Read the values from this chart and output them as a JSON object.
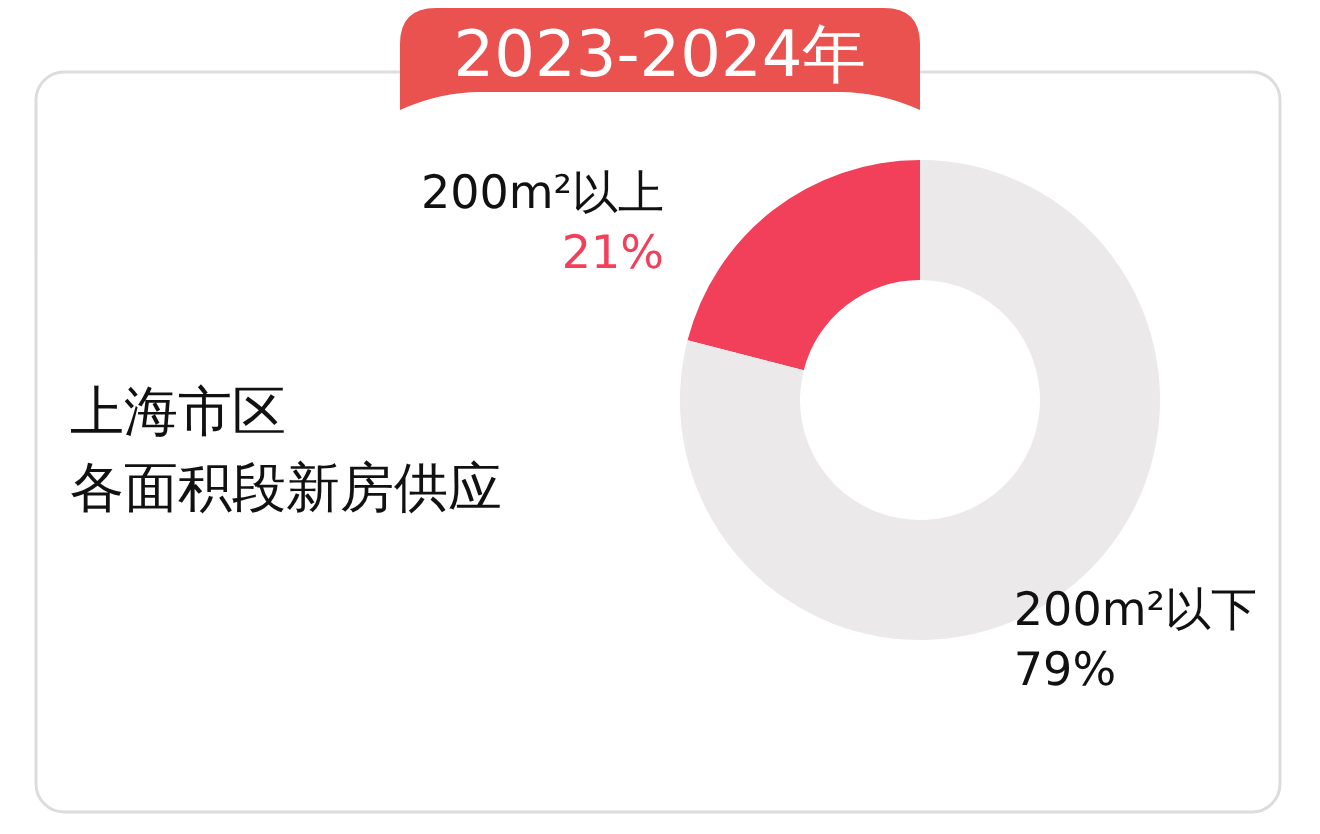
{
  "chart_data": {
    "type": "donut",
    "title": "2023-2024年",
    "subtitle": "上海市区",
    "annotations": [
      "各面积段新房供应"
    ],
    "categories": [
      "200m²以上",
      "200m²以下"
    ],
    "values": [
      21,
      79
    ],
    "colors": [
      "#f2405b",
      "#ebe9e9"
    ],
    "value_labels": [
      "21%",
      "79%"
    ]
  }
}
